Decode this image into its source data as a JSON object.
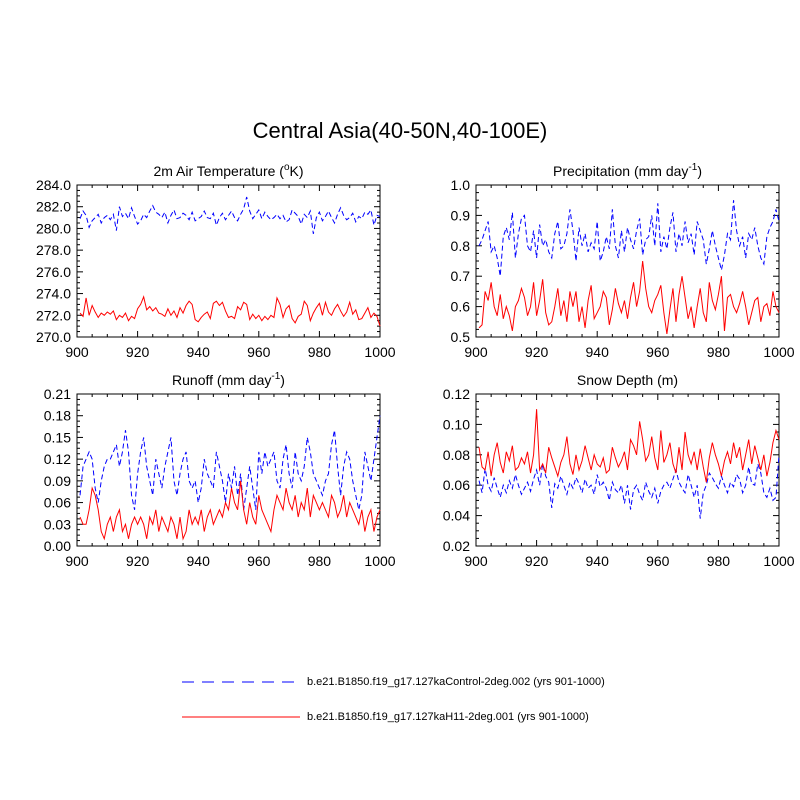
{
  "figure": {
    "title": "Central Asia(40-50N,40-100E)"
  },
  "series_styles": [
    {
      "name": "b.e21.B1850.f19_g17.127kaControl-2deg.002 (yrs 901-1000)",
      "color": "#0000ff",
      "dash": "dashed"
    },
    {
      "name": "b.e21.B1850.f19_g17.127kaH11-2deg.001 (yrs 901-1000)",
      "color": "#ff0000",
      "dash": "solid"
    }
  ],
  "legend": {
    "items": [
      {
        "label": "b.e21.B1850.f19_g17.127kaControl-2deg.002 (yrs 901-1000)",
        "color": "#0000ff"
      },
      {
        "label": "b.e21.B1850.f19_g17.127kaH11-2deg.001 (yrs 901-1000)",
        "color": "#ff0000"
      }
    ]
  },
  "chart_data": [
    {
      "type": "line",
      "title": "2m Air Temperature (",
      "title_sup": "o",
      "title_suffix": "K)",
      "xlim": [
        900,
        1000
      ],
      "xticks": [
        900,
        920,
        940,
        960,
        980,
        1000
      ],
      "ylim": [
        270,
        284
      ],
      "yticks": [
        "270.0",
        "272.0",
        "274.0",
        "276.0",
        "278.0",
        "280.0",
        "282.0",
        "284.0"
      ],
      "x_start": 901,
      "x_step": 1,
      "series": [
        {
          "name": "b.e21.B1850.f19_g17.127kaControl-2deg.002 (yrs 901-1000)",
          "values": [
            280.9,
            281.6,
            281.2,
            280.1,
            280.7,
            281.0,
            281.3,
            280.5,
            281.0,
            281.2,
            280.8,
            281.3,
            279.8,
            282.0,
            281.1,
            281.4,
            280.9,
            281.9,
            281.1,
            280.4,
            280.7,
            281.3,
            281.0,
            281.6,
            282.1,
            281.5,
            281.3,
            281.0,
            281.5,
            280.5,
            281.2,
            281.7,
            280.9,
            281.0,
            281.4,
            281.2,
            280.8,
            281.5,
            280.7,
            280.9,
            281.1,
            281.6,
            281.0,
            280.9,
            281.4,
            280.3,
            281.0,
            281.4,
            280.8,
            281.2,
            281.6,
            281.0,
            280.7,
            281.3,
            281.8,
            282.9,
            281.6,
            280.9,
            281.3,
            281.7,
            280.9,
            281.5,
            281.1,
            280.8,
            281.0,
            281.3,
            280.9,
            281.2,
            280.6,
            280.8,
            281.7,
            281.4,
            281.1,
            280.4,
            281.3,
            281.0,
            281.6,
            279.5,
            281.0,
            281.5,
            280.7,
            281.1,
            281.6,
            281.0,
            280.5,
            281.3,
            281.9,
            281.2,
            280.8,
            281.0,
            281.4,
            280.6,
            281.1,
            280.9,
            281.5,
            281.3,
            281.7,
            280.3,
            281.2,
            281.1
          ]
        },
        {
          "name": "b.e21.B1850.f19_g17.127kaH11-2deg.001 (yrs 901-1000)",
          "values": [
            272.2,
            271.9,
            273.6,
            272.0,
            272.9,
            272.3,
            271.8,
            272.2,
            272.0,
            272.3,
            272.1,
            272.4,
            271.6,
            272.0,
            271.8,
            272.2,
            271.5,
            271.9,
            271.7,
            272.6,
            273.0,
            273.7,
            272.5,
            272.8,
            272.4,
            272.7,
            272.2,
            272.1,
            271.9,
            272.6,
            272.0,
            272.4,
            271.8,
            272.7,
            272.2,
            272.9,
            273.3,
            273.0,
            271.6,
            271.4,
            271.8,
            272.1,
            272.3,
            271.7,
            273.1,
            273.3,
            272.9,
            273.2,
            272.4,
            271.8,
            271.9,
            271.7,
            272.8,
            272.5,
            273.2,
            273.0,
            271.6,
            272.1,
            271.7,
            272.0,
            271.5,
            271.9,
            271.6,
            272.0,
            271.8,
            273.6,
            273.0,
            271.8,
            272.6,
            272.9,
            271.7,
            271.3,
            271.9,
            272.1,
            273.3,
            272.9,
            271.5,
            272.2,
            272.7,
            273.1,
            272.0,
            273.2,
            272.3,
            272.0,
            272.6,
            273.0,
            272.4,
            271.9,
            272.3,
            273.2,
            272.1,
            272.5,
            271.6,
            271.7,
            272.2,
            272.7,
            271.8,
            272.2,
            271.9,
            271.0
          ]
        }
      ]
    },
    {
      "type": "line",
      "title": "Precipitation (mm day",
      "title_sup": "-1",
      "title_suffix": ")",
      "xlim": [
        900,
        1000
      ],
      "xticks": [
        900,
        920,
        940,
        960,
        980,
        1000
      ],
      "ylim": [
        0.5,
        1.0
      ],
      "yticks": [
        "0.5",
        "0.6",
        "0.7",
        "0.8",
        "0.9",
        "1.0"
      ],
      "x_start": 901,
      "x_step": 1,
      "series": [
        {
          "name": "b.e21.B1850.f19_g17.127kaControl-2deg.002 (yrs 901-1000)",
          "values": [
            0.8,
            0.82,
            0.85,
            0.88,
            0.78,
            0.8,
            0.76,
            0.7,
            0.83,
            0.86,
            0.82,
            0.91,
            0.76,
            0.84,
            0.89,
            0.9,
            0.8,
            0.78,
            0.85,
            0.76,
            0.87,
            0.8,
            0.82,
            0.78,
            0.76,
            0.84,
            0.88,
            0.79,
            0.8,
            0.84,
            0.92,
            0.85,
            0.75,
            0.86,
            0.8,
            0.84,
            0.78,
            0.81,
            0.79,
            0.88,
            0.75,
            0.78,
            0.83,
            0.79,
            0.92,
            0.8,
            0.76,
            0.85,
            0.78,
            0.86,
            0.82,
            0.79,
            0.85,
            0.89,
            0.77,
            0.82,
            0.83,
            0.9,
            0.8,
            0.94,
            0.78,
            0.83,
            0.79,
            0.86,
            0.91,
            0.78,
            0.84,
            0.8,
            0.88,
            0.81,
            0.84,
            0.77,
            0.88,
            0.85,
            0.82,
            0.74,
            0.79,
            0.85,
            0.8,
            0.76,
            0.72,
            0.77,
            0.84,
            0.82,
            0.95,
            0.85,
            0.8,
            0.83,
            0.76,
            0.84,
            0.82,
            0.86,
            0.8,
            0.76,
            0.74,
            0.83,
            0.86,
            0.88,
            0.92,
            0.88
          ]
        },
        {
          "name": "b.e21.B1850.f19_g17.127kaH11-2deg.001 (yrs 901-1000)",
          "values": [
            0.53,
            0.54,
            0.65,
            0.62,
            0.68,
            0.6,
            0.57,
            0.64,
            0.56,
            0.6,
            0.57,
            0.52,
            0.6,
            0.62,
            0.66,
            0.63,
            0.57,
            0.6,
            0.68,
            0.57,
            0.62,
            0.69,
            0.58,
            0.54,
            0.55,
            0.6,
            0.66,
            0.57,
            0.62,
            0.55,
            0.65,
            0.6,
            0.65,
            0.55,
            0.6,
            0.53,
            0.62,
            0.67,
            0.56,
            0.58,
            0.6,
            0.65,
            0.63,
            0.54,
            0.59,
            0.66,
            0.61,
            0.58,
            0.62,
            0.56,
            0.63,
            0.68,
            0.6,
            0.65,
            0.75,
            0.66,
            0.6,
            0.58,
            0.62,
            0.64,
            0.67,
            0.58,
            0.51,
            0.59,
            0.66,
            0.55,
            0.64,
            0.7,
            0.63,
            0.56,
            0.6,
            0.53,
            0.6,
            0.66,
            0.58,
            0.55,
            0.68,
            0.62,
            0.59,
            0.64,
            0.7,
            0.52,
            0.63,
            0.64,
            0.6,
            0.58,
            0.61,
            0.65,
            0.6,
            0.54,
            0.58,
            0.62,
            0.63,
            0.55,
            0.6,
            0.61,
            0.57,
            0.65,
            0.6,
            0.58
          ]
        }
      ]
    },
    {
      "type": "line",
      "title": "Runoff (mm day",
      "title_sup": "-1",
      "title_suffix": ")",
      "xlim": [
        900,
        1000
      ],
      "xticks": [
        900,
        920,
        940,
        960,
        980,
        1000
      ],
      "ylim": [
        0.0,
        0.21
      ],
      "yticks": [
        "0.00",
        "0.03",
        "0.06",
        "0.09",
        "0.12",
        "0.15",
        "0.18",
        "0.21"
      ],
      "x_start": 901,
      "x_step": 1,
      "series": [
        {
          "name": "b.e21.B1850.f19_g17.127kaControl-2deg.002 (yrs 901-1000)",
          "values": [
            0.07,
            0.11,
            0.12,
            0.13,
            0.12,
            0.08,
            0.06,
            0.09,
            0.11,
            0.12,
            0.12,
            0.13,
            0.14,
            0.11,
            0.13,
            0.16,
            0.13,
            0.07,
            0.05,
            0.1,
            0.13,
            0.15,
            0.11,
            0.09,
            0.07,
            0.12,
            0.1,
            0.08,
            0.11,
            0.13,
            0.15,
            0.09,
            0.07,
            0.1,
            0.12,
            0.13,
            0.09,
            0.08,
            0.09,
            0.06,
            0.08,
            0.12,
            0.1,
            0.09,
            0.08,
            0.13,
            0.11,
            0.09,
            0.06,
            0.1,
            0.08,
            0.11,
            0.07,
            0.1,
            0.05,
            0.08,
            0.11,
            0.08,
            0.05,
            0.13,
            0.1,
            0.13,
            0.11,
            0.12,
            0.13,
            0.09,
            0.08,
            0.12,
            0.14,
            0.1,
            0.08,
            0.13,
            0.1,
            0.09,
            0.11,
            0.15,
            0.13,
            0.1,
            0.09,
            0.08,
            0.07,
            0.09,
            0.1,
            0.14,
            0.16,
            0.11,
            0.07,
            0.11,
            0.13,
            0.12,
            0.09,
            0.07,
            0.05,
            0.07,
            0.13,
            0.11,
            0.09,
            0.12,
            0.15,
            0.18
          ]
        },
        {
          "name": "b.e21.B1850.f19_g17.127kaH11-2deg.001 (yrs 901-1000)",
          "values": [
            0.04,
            0.03,
            0.03,
            0.05,
            0.08,
            0.07,
            0.05,
            0.02,
            0.01,
            0.03,
            0.04,
            0.02,
            0.04,
            0.05,
            0.02,
            0.03,
            0.01,
            0.03,
            0.04,
            0.03,
            0.04,
            0.03,
            0.01,
            0.04,
            0.03,
            0.05,
            0.02,
            0.04,
            0.03,
            0.02,
            0.04,
            0.03,
            0.01,
            0.04,
            0.01,
            0.02,
            0.05,
            0.03,
            0.04,
            0.03,
            0.05,
            0.02,
            0.04,
            0.05,
            0.03,
            0.04,
            0.05,
            0.04,
            0.06,
            0.05,
            0.08,
            0.06,
            0.05,
            0.09,
            0.05,
            0.03,
            0.06,
            0.04,
            0.03,
            0.07,
            0.05,
            0.04,
            0.03,
            0.02,
            0.05,
            0.07,
            0.06,
            0.05,
            0.08,
            0.06,
            0.05,
            0.07,
            0.04,
            0.06,
            0.05,
            0.08,
            0.04,
            0.07,
            0.06,
            0.05,
            0.06,
            0.05,
            0.04,
            0.07,
            0.06,
            0.04,
            0.05,
            0.07,
            0.04,
            0.06,
            0.05,
            0.04,
            0.03,
            0.05,
            0.02,
            0.04,
            0.05,
            0.02,
            0.04,
            0.05
          ]
        }
      ]
    },
    {
      "type": "line",
      "title": "Snow Depth (m)",
      "title_sup": "",
      "title_suffix": "",
      "xlim": [
        900,
        1000
      ],
      "xticks": [
        900,
        920,
        940,
        960,
        980,
        1000
      ],
      "ylim": [
        0.02,
        0.12
      ],
      "yticks": [
        "0.02",
        "0.04",
        "0.06",
        "0.08",
        "0.10",
        "0.12"
      ],
      "x_start": 901,
      "x_step": 1,
      "series": [
        {
          "name": "b.e21.B1850.f19_g17.127kaControl-2deg.002 (yrs 901-1000)",
          "values": [
            0.063,
            0.055,
            0.071,
            0.06,
            0.056,
            0.065,
            0.058,
            0.052,
            0.06,
            0.055,
            0.063,
            0.058,
            0.067,
            0.06,
            0.054,
            0.058,
            0.062,
            0.056,
            0.064,
            0.07,
            0.06,
            0.074,
            0.066,
            0.062,
            0.045,
            0.061,
            0.058,
            0.066,
            0.06,
            0.054,
            0.062,
            0.058,
            0.065,
            0.061,
            0.055,
            0.064,
            0.058,
            0.06,
            0.054,
            0.067,
            0.059,
            0.062,
            0.058,
            0.05,
            0.062,
            0.057,
            0.055,
            0.06,
            0.048,
            0.06,
            0.044,
            0.057,
            0.06,
            0.054,
            0.05,
            0.062,
            0.056,
            0.052,
            0.058,
            0.048,
            0.056,
            0.06,
            0.062,
            0.058,
            0.064,
            0.07,
            0.062,
            0.058,
            0.055,
            0.067,
            0.06,
            0.052,
            0.06,
            0.038,
            0.055,
            0.06,
            0.068,
            0.065,
            0.061,
            0.058,
            0.066,
            0.06,
            0.055,
            0.062,
            0.059,
            0.067,
            0.064,
            0.055,
            0.06,
            0.072,
            0.061,
            0.06,
            0.074,
            0.068,
            0.055,
            0.052,
            0.058,
            0.05,
            0.052,
            0.08
          ]
        },
        {
          "name": "b.e21.B1850.f19_g17.127kaH11-2deg.001 (yrs 901-1000)",
          "values": [
            0.085,
            0.072,
            0.07,
            0.082,
            0.066,
            0.08,
            0.088,
            0.075,
            0.068,
            0.082,
            0.076,
            0.086,
            0.07,
            0.072,
            0.078,
            0.074,
            0.082,
            0.068,
            0.08,
            0.11,
            0.07,
            0.074,
            0.068,
            0.085,
            0.078,
            0.072,
            0.066,
            0.075,
            0.08,
            0.092,
            0.074,
            0.067,
            0.08,
            0.07,
            0.076,
            0.086,
            0.078,
            0.07,
            0.08,
            0.074,
            0.072,
            0.078,
            0.068,
            0.07,
            0.085,
            0.078,
            0.072,
            0.076,
            0.082,
            0.07,
            0.09,
            0.086,
            0.08,
            0.102,
            0.09,
            0.076,
            0.08,
            0.092,
            0.078,
            0.07,
            0.096,
            0.075,
            0.08,
            0.088,
            0.074,
            0.068,
            0.085,
            0.07,
            0.095,
            0.08,
            0.074,
            0.082,
            0.07,
            0.084,
            0.072,
            0.062,
            0.078,
            0.088,
            0.08,
            0.074,
            0.066,
            0.076,
            0.082,
            0.074,
            0.088,
            0.078,
            0.085,
            0.07,
            0.08,
            0.09,
            0.074,
            0.086,
            0.078,
            0.07,
            0.08,
            0.066,
            0.075,
            0.088,
            0.096,
            0.09
          ]
        }
      ]
    }
  ]
}
